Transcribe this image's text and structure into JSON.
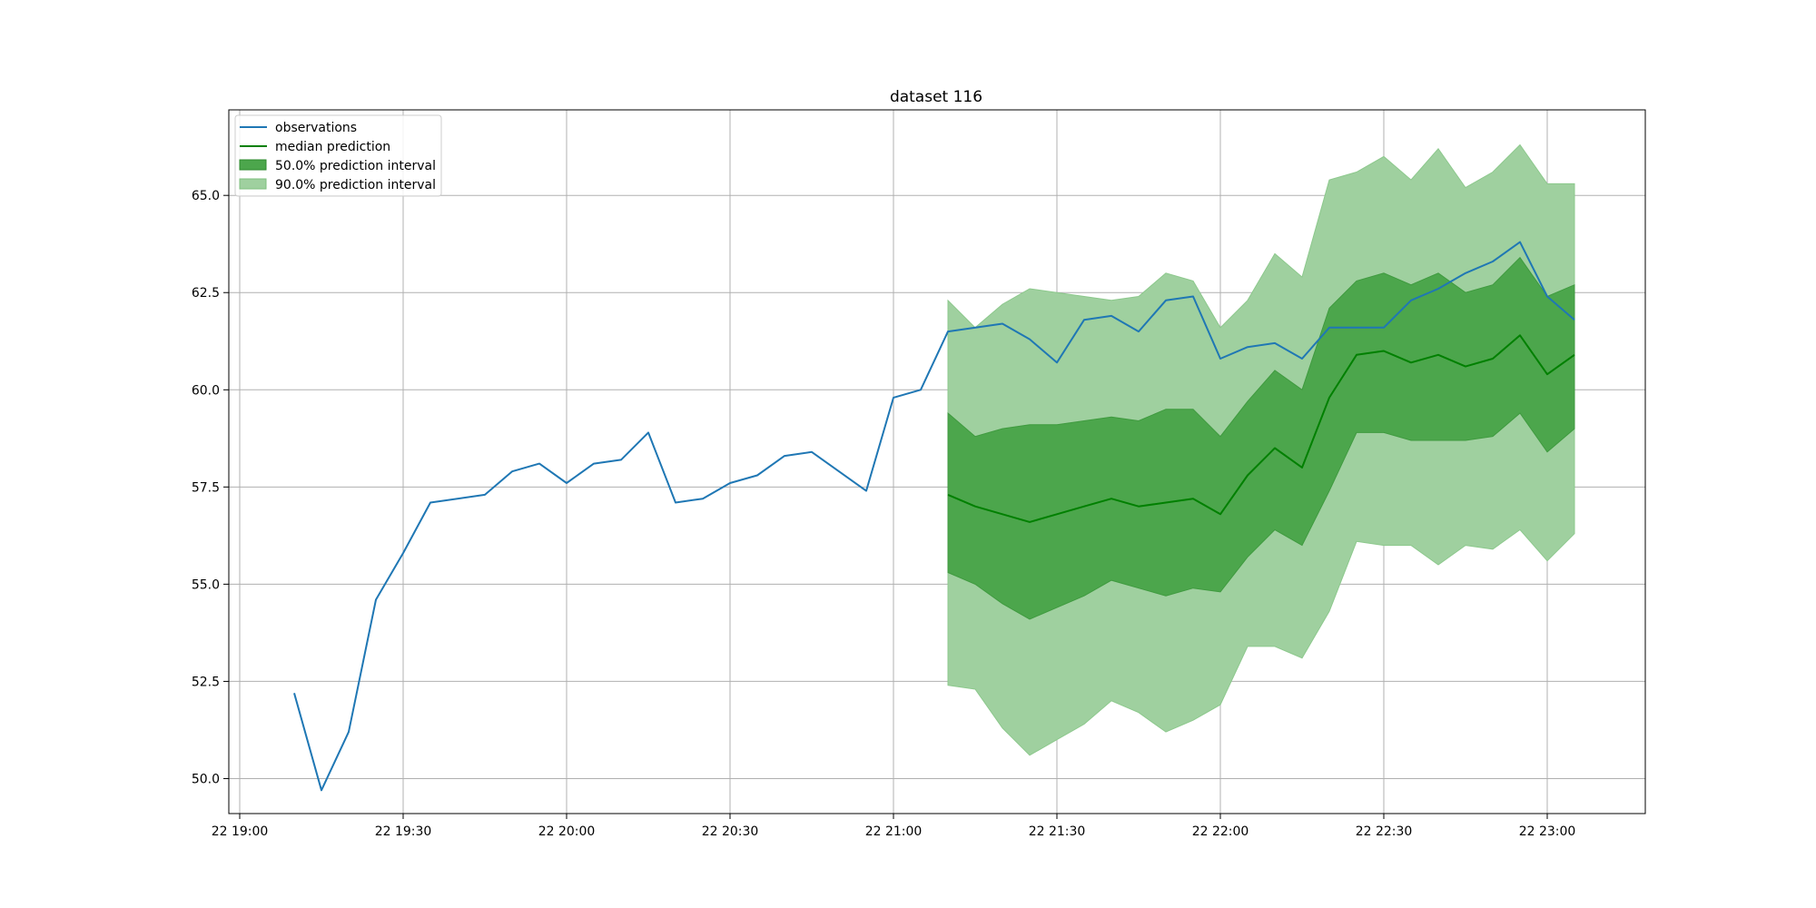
{
  "chart_data": {
    "type": "line",
    "title": "dataset 116",
    "xlabel": "",
    "ylabel": "",
    "x_axis": {
      "ticks": [
        "19:00",
        "19:30",
        "20:00",
        "20:30",
        "21:00",
        "21:30",
        "22:00",
        "22:30",
        "23:00"
      ],
      "tick_labels": [
        "22 19:00",
        "22 19:30",
        "22 20:00",
        "22 20:30",
        "22 21:00",
        "22 21:30",
        "22 22:00",
        "22 22:30",
        "22 23:00"
      ],
      "range": [
        "18:58",
        "23:18"
      ]
    },
    "y_axis": {
      "ticks": [
        50.0,
        52.5,
        55.0,
        57.5,
        60.0,
        62.5,
        65.0
      ],
      "tick_labels": [
        "50.0",
        "52.5",
        "55.0",
        "57.5",
        "60.0",
        "62.5",
        "65.0"
      ],
      "range": [
        49.1,
        67.2
      ]
    },
    "grid": true,
    "legend": {
      "position": "top-left",
      "entries": [
        "observations",
        "median prediction",
        "50.0% prediction interval",
        "90.0% prediction interval"
      ]
    },
    "colors": {
      "observations": "#1f77b4",
      "median": "#008000",
      "band50": "#4ca64c",
      "band90": "#9fd09f"
    },
    "observations": {
      "x": [
        "19:10",
        "19:15",
        "19:20",
        "19:25",
        "19:30",
        "19:35",
        "19:45",
        "19:50",
        "19:55",
        "20:00",
        "20:05",
        "20:10",
        "20:15",
        "20:20",
        "20:25",
        "20:30",
        "20:35",
        "20:40",
        "20:45",
        "20:55",
        "21:00",
        "21:05",
        "21:10",
        "21:20",
        "21:25",
        "21:30",
        "21:35",
        "21:40",
        "21:45",
        "21:50",
        "21:55",
        "22:00",
        "22:05",
        "22:10",
        "22:15",
        "22:20",
        "22:30",
        "22:35",
        "22:40",
        "22:45",
        "22:50",
        "22:55",
        "23:00",
        "23:05"
      ],
      "y": [
        52.2,
        49.7,
        51.2,
        54.6,
        55.8,
        57.1,
        57.3,
        57.9,
        58.1,
        57.6,
        58.1,
        58.2,
        58.9,
        57.1,
        57.2,
        57.6,
        57.8,
        58.3,
        58.4,
        57.4,
        59.8,
        60.0,
        61.5,
        61.7,
        61.3,
        60.7,
        61.8,
        61.9,
        61.5,
        62.3,
        62.4,
        60.8,
        61.1,
        61.2,
        60.8,
        61.6,
        61.6,
        62.3,
        62.6,
        63.0,
        63.3,
        63.8,
        62.4,
        61.8
      ]
    },
    "forecast": {
      "x": [
        "21:10",
        "21:15",
        "21:20",
        "21:25",
        "21:30",
        "21:35",
        "21:40",
        "21:45",
        "21:50",
        "21:55",
        "22:00",
        "22:05",
        "22:10",
        "22:15",
        "22:20",
        "22:25",
        "22:30",
        "22:35",
        "22:40",
        "22:45",
        "22:50",
        "22:55",
        "23:00",
        "23:05"
      ],
      "median": [
        57.3,
        57.0,
        56.8,
        56.6,
        56.8,
        57.0,
        57.2,
        57.0,
        57.1,
        57.2,
        56.8,
        57.8,
        58.5,
        58.0,
        59.8,
        60.9,
        61.0,
        60.7,
        60.9,
        60.6,
        60.8,
        61.4,
        60.4,
        60.9
      ],
      "lower50": [
        55.3,
        55.0,
        54.5,
        54.1,
        54.4,
        54.7,
        55.1,
        54.9,
        54.7,
        54.9,
        54.8,
        55.7,
        56.4,
        56.0,
        57.4,
        58.9,
        58.9,
        58.7,
        58.7,
        58.7,
        58.8,
        59.4,
        58.4,
        59.0
      ],
      "upper50": [
        59.4,
        58.8,
        59.0,
        59.1,
        59.1,
        59.2,
        59.3,
        59.2,
        59.5,
        59.5,
        58.8,
        59.7,
        60.5,
        60.0,
        62.1,
        62.8,
        63.0,
        62.7,
        63.0,
        62.5,
        62.7,
        63.4,
        62.4,
        62.7
      ],
      "lower90": [
        52.4,
        52.3,
        51.3,
        50.6,
        51.0,
        51.4,
        52.0,
        51.7,
        51.2,
        51.5,
        51.9,
        53.4,
        53.4,
        53.1,
        54.3,
        56.1,
        56.0,
        56.0,
        55.5,
        56.0,
        55.9,
        56.4,
        55.6,
        56.3
      ],
      "upper90": [
        62.3,
        61.6,
        62.2,
        62.6,
        62.5,
        62.4,
        62.3,
        62.4,
        63.0,
        62.8,
        61.6,
        62.3,
        63.5,
        62.9,
        65.4,
        65.6,
        66.0,
        65.4,
        66.2,
        65.2,
        65.6,
        66.3,
        65.3,
        65.3
      ]
    }
  }
}
